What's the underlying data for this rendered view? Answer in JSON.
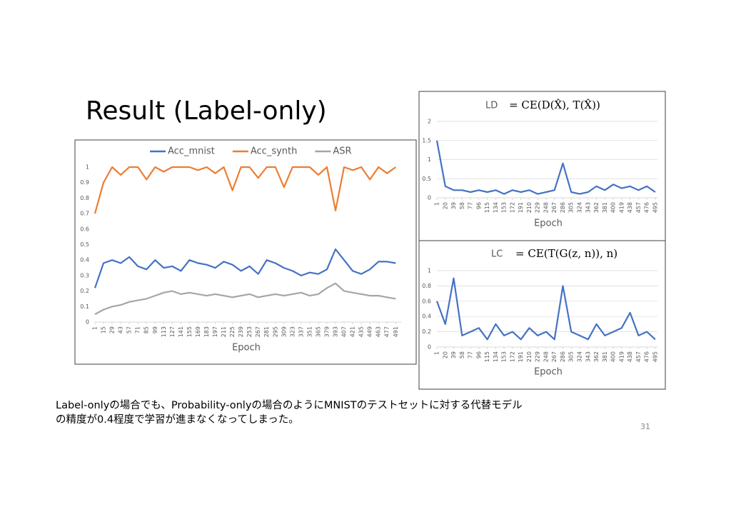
{
  "slide": {
    "title": "Result (Label-only)",
    "body": [
      "Label-onlyの場合でも、Probability-onlyの場合のようにMNISTのテストセットに対する代替モデル",
      "の精度が0.4程度で学習が進まなくなってしまった。"
    ],
    "page_number": "31"
  },
  "chart_data": [
    {
      "type": "line",
      "x_label": "Epoch",
      "legend": "top",
      "grid": false,
      "x": [
        1,
        15,
        29,
        43,
        57,
        71,
        85,
        99,
        113,
        127,
        141,
        155,
        169,
        183,
        197,
        211,
        225,
        239,
        253,
        267,
        281,
        295,
        309,
        323,
        337,
        351,
        365,
        379,
        393,
        407,
        421,
        435,
        449,
        463,
        477,
        491
      ],
      "xlim": [
        1,
        500
      ],
      "xticks": [
        1,
        15,
        29,
        43,
        57,
        71,
        85,
        99,
        113,
        127,
        141,
        155,
        169,
        183,
        197,
        211,
        225,
        239,
        253,
        267,
        281,
        295,
        309,
        323,
        337,
        351,
        365,
        379,
        393,
        407,
        421,
        435,
        449,
        463,
        477,
        491
      ],
      "ylim": [
        0,
        1
      ],
      "yticks": [
        0,
        0.1,
        0.2,
        0.3,
        0.4,
        0.5,
        0.6,
        0.7,
        0.8,
        0.9,
        1
      ],
      "series": [
        {
          "name": "Acc_mnist",
          "color": "#4472c4",
          "values": [
            0.22,
            0.38,
            0.4,
            0.38,
            0.42,
            0.36,
            0.34,
            0.4,
            0.35,
            0.36,
            0.33,
            0.4,
            0.38,
            0.37,
            0.35,
            0.39,
            0.37,
            0.33,
            0.36,
            0.31,
            0.4,
            0.38,
            0.35,
            0.33,
            0.3,
            0.32,
            0.31,
            0.34,
            0.47,
            0.4,
            0.33,
            0.31,
            0.34,
            0.39,
            0.39,
            0.38
          ]
        },
        {
          "name": "Acc_synth",
          "color": "#ed7d31",
          "values": [
            0.7,
            0.9,
            1,
            0.95,
            1,
            1,
            0.92,
            1,
            0.97,
            1,
            1,
            1,
            0.98,
            1,
            0.96,
            1,
            0.85,
            1,
            1,
            0.93,
            1,
            1,
            0.87,
            1,
            1,
            1,
            0.95,
            1,
            0.72,
            1,
            0.98,
            1,
            0.92,
            1,
            0.96,
            1
          ]
        },
        {
          "name": "ASR",
          "color": "#a5a5a5",
          "values": [
            0.05,
            0.08,
            0.1,
            0.11,
            0.13,
            0.14,
            0.15,
            0.17,
            0.19,
            0.2,
            0.18,
            0.19,
            0.18,
            0.17,
            0.18,
            0.17,
            0.16,
            0.17,
            0.18,
            0.16,
            0.17,
            0.18,
            0.17,
            0.18,
            0.19,
            0.17,
            0.18,
            0.22,
            0.25,
            0.2,
            0.19,
            0.18,
            0.17,
            0.17,
            0.16,
            0.15
          ]
        }
      ]
    },
    {
      "type": "line",
      "title": "LD",
      "formula": "= CE(D(X̂), T(X̂))",
      "x_label": "Epoch",
      "grid": true,
      "x": [
        1,
        20,
        39,
        58,
        77,
        96,
        115,
        134,
        153,
        172,
        191,
        210,
        229,
        248,
        267,
        286,
        305,
        324,
        343,
        362,
        381,
        400,
        419,
        438,
        457,
        476,
        495
      ],
      "xlim": [
        1,
        500
      ],
      "xticks": [
        1,
        20,
        39,
        58,
        77,
        96,
        115,
        134,
        153,
        172,
        191,
        210,
        229,
        248,
        267,
        286,
        305,
        324,
        343,
        362,
        381,
        400,
        419,
        438,
        457,
        476,
        495
      ],
      "ylim": [
        0,
        2
      ],
      "yticks": [
        0,
        0.5,
        1,
        1.5,
        2
      ],
      "series": [
        {
          "name": "LD",
          "color": "#4472c4",
          "values": [
            1.5,
            0.3,
            0.2,
            0.2,
            0.15,
            0.2,
            0.15,
            0.2,
            0.1,
            0.2,
            0.15,
            0.2,
            0.1,
            0.15,
            0.2,
            0.9,
            0.15,
            0.1,
            0.15,
            0.3,
            0.2,
            0.35,
            0.25,
            0.3,
            0.2,
            0.3,
            0.15
          ]
        }
      ]
    },
    {
      "type": "line",
      "title": "LC",
      "formula": "= CE(T(G(z, n)), n)",
      "x_label": "Epoch",
      "grid": true,
      "x": [
        1,
        20,
        39,
        58,
        77,
        96,
        115,
        134,
        153,
        172,
        191,
        210,
        229,
        248,
        267,
        286,
        305,
        324,
        343,
        362,
        381,
        400,
        419,
        438,
        457,
        476,
        495
      ],
      "xlim": [
        1,
        500
      ],
      "xticks": [
        1,
        20,
        39,
        58,
        77,
        96,
        115,
        134,
        153,
        172,
        191,
        210,
        229,
        248,
        267,
        286,
        305,
        324,
        343,
        362,
        381,
        400,
        419,
        438,
        457,
        476,
        495
      ],
      "ylim": [
        0,
        1
      ],
      "yticks": [
        0,
        0.2,
        0.4,
        0.6,
        0.8,
        1
      ],
      "series": [
        {
          "name": "LC",
          "color": "#4472c4",
          "values": [
            0.6,
            0.3,
            0.9,
            0.15,
            0.2,
            0.25,
            0.1,
            0.3,
            0.15,
            0.2,
            0.1,
            0.25,
            0.15,
            0.2,
            0.1,
            0.8,
            0.2,
            0.15,
            0.1,
            0.3,
            0.15,
            0.2,
            0.25,
            0.45,
            0.15,
            0.2,
            0.1
          ]
        }
      ]
    }
  ]
}
